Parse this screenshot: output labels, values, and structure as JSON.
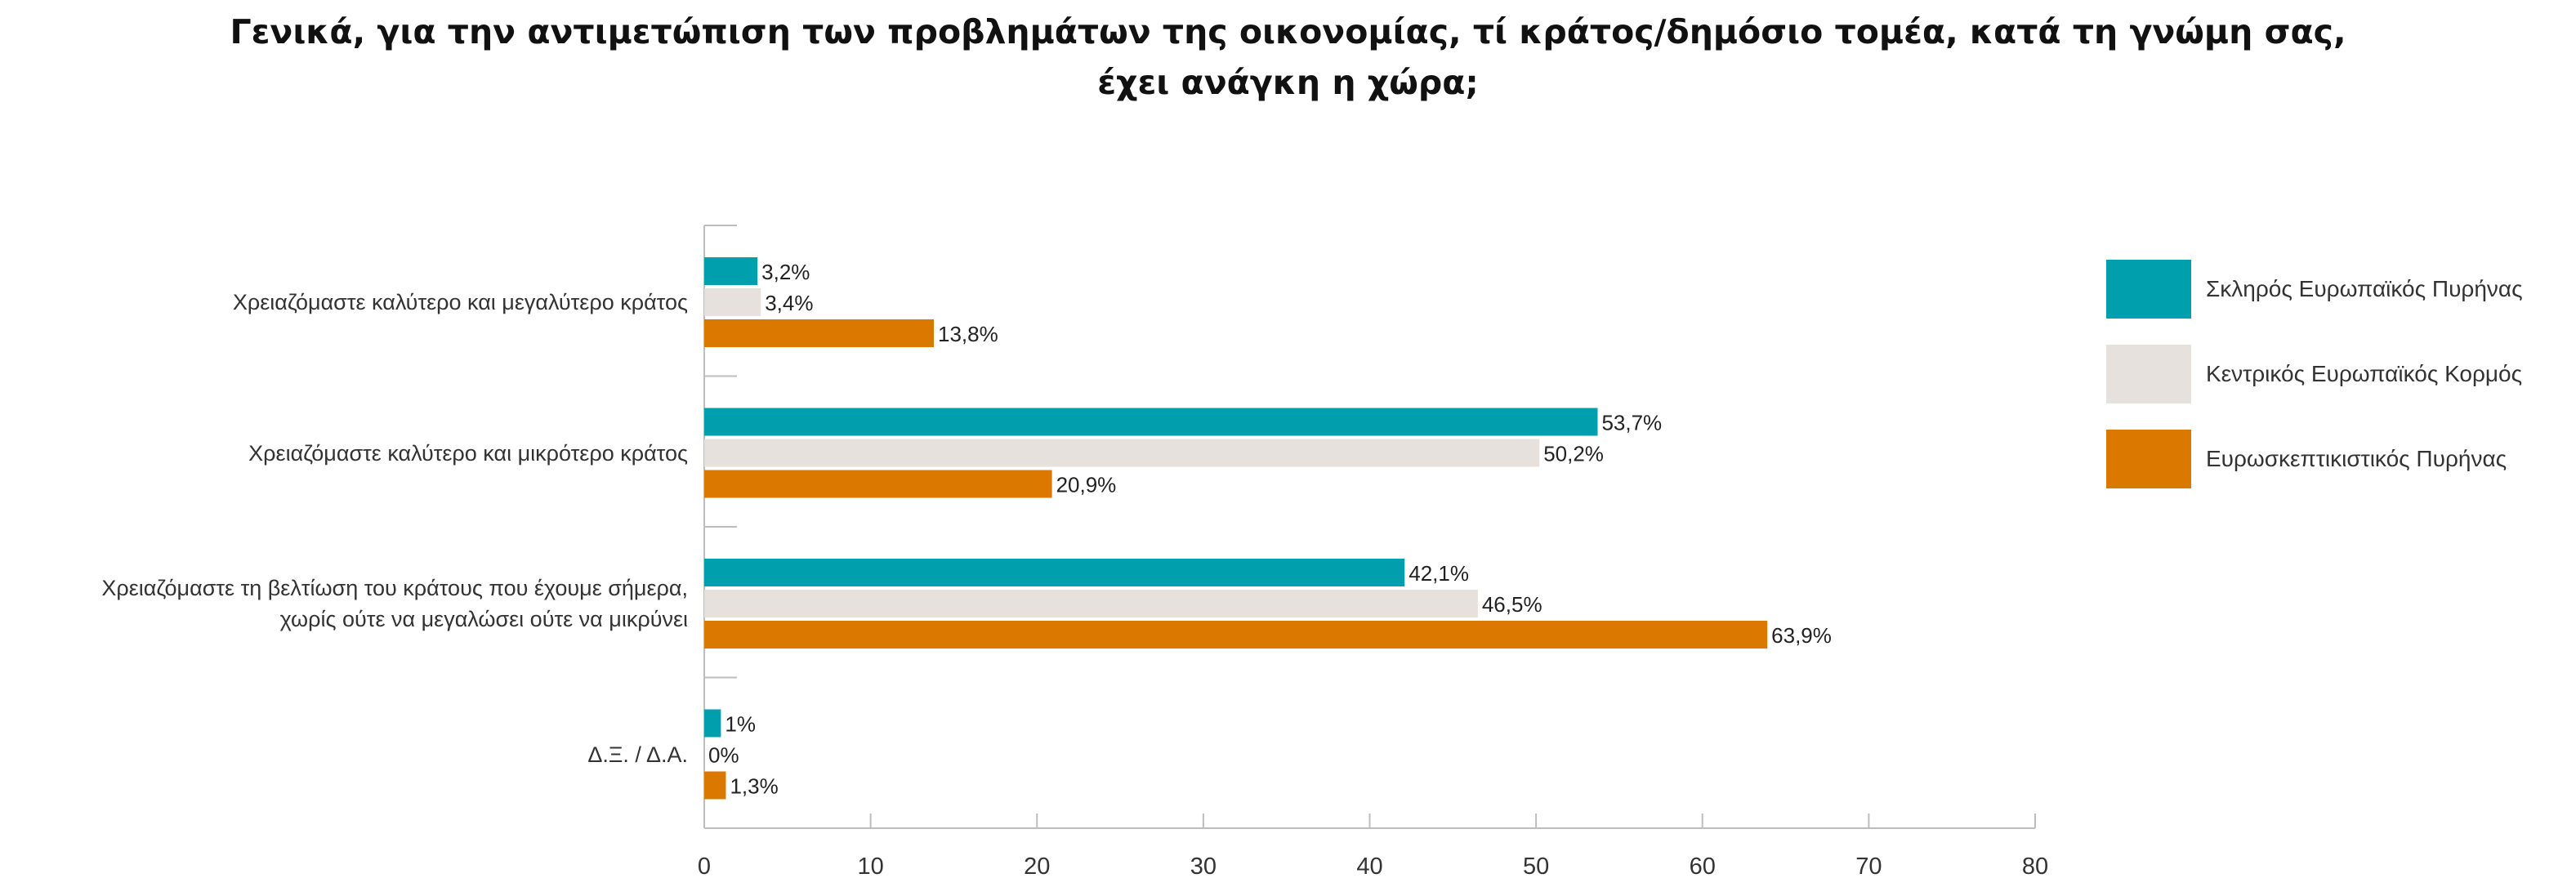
{
  "title_lines": [
    "Γενικά, για την αντιμετώπιση των προβλημάτων της οικονομίας, τί κράτος/δημόσιο τομέα, κατά τη γνώμη σας,",
    "έχει ανάγκη η χώρα;"
  ],
  "chart_data": {
    "type": "bar",
    "orientation": "horizontal",
    "title": "Γενικά, για την αντιμετώπιση των προβλημάτων της οικονομίας, τί κράτος/δημόσιο τομέα, κατά τη γνώμη σας, έχει ανάγκη η χώρα;",
    "categories": [
      [
        "Χρειαζόμαστε καλύτερο και μεγαλύτερο κράτος"
      ],
      [
        "Χρειαζόμαστε καλύτερο και μικρότερο κράτος"
      ],
      [
        "Χρειαζόμαστε τη βελτίωση του κράτους που έχουμε σήμερα,",
        "χωρίς ούτε να μεγαλώσει ούτε να μικρύνει"
      ],
      [
        "Δ.Ξ. / Δ.Α."
      ]
    ],
    "series": [
      {
        "name": "Σκληρός Ευρωπαϊκός Πυρήνας",
        "color": "#009fae",
        "values": [
          3.2,
          53.7,
          42.1,
          1
        ],
        "labels": [
          "3,2%",
          "53,7%",
          "42,1%",
          "1%"
        ]
      },
      {
        "name": "Κεντρικός Ευρωπαϊκός Κορμός",
        "color": "#e6e1dc",
        "values": [
          3.4,
          50.2,
          46.5,
          0
        ],
        "labels": [
          "3,4%",
          "50,2%",
          "46,5%",
          "0%"
        ]
      },
      {
        "name": "Ευρωσκεπτικιστικός Πυρήνας",
        "color": "#db7800",
        "values": [
          13.8,
          20.9,
          63.9,
          1.3
        ],
        "labels": [
          "13,8%",
          "20,9%",
          "63,9%",
          "1,3%"
        ]
      }
    ],
    "xlim": [
      0,
      80
    ],
    "xticks": [
      "0",
      "10",
      "20",
      "30",
      "40",
      "50",
      "60",
      "70",
      "80"
    ],
    "grid": false,
    "legend_position": "right"
  }
}
